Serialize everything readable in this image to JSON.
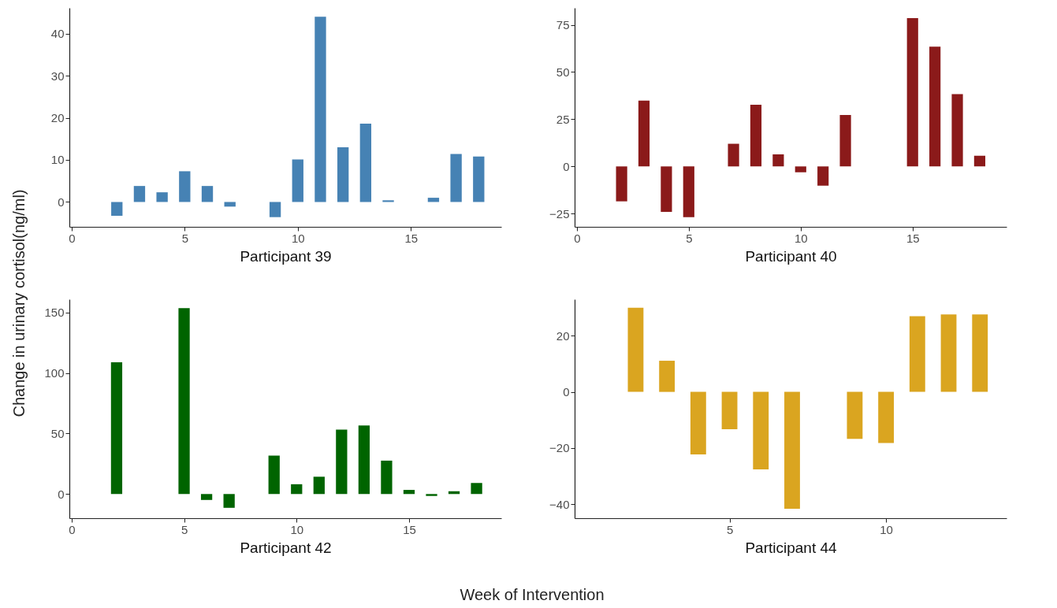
{
  "chart_data": [
    {
      "type": "bar",
      "xlabel": "Participant 39",
      "color": "#4682b4",
      "x": [
        2,
        3,
        4,
        5,
        6,
        7,
        9,
        10,
        11,
        12,
        13,
        14,
        16,
        17,
        18
      ],
      "values": [
        -3.3,
        3.8,
        2.3,
        7.3,
        3.8,
        -1.1,
        -3.6,
        10.1,
        44.0,
        13.0,
        18.6,
        0.4,
        1.0,
        11.4,
        10.8
      ],
      "xlim": [
        -0.1,
        19
      ],
      "xticks": [
        0,
        5,
        10,
        15
      ],
      "ylim": [
        -5.9,
        46.1
      ],
      "yticks": [
        0,
        10,
        20,
        30,
        40
      ],
      "annotations": [
        "Change in urinary cortisol(ng/ml)",
        "Week of Intervention"
      ]
    },
    {
      "type": "bar",
      "xlabel": "Participant 40",
      "color": "#8b1a1a",
      "x": [
        2,
        3,
        4,
        5,
        7,
        8,
        9,
        10,
        11,
        12,
        15,
        16,
        17,
        18
      ],
      "values": [
        -18.5,
        34.9,
        -24.1,
        -26.9,
        12.0,
        32.7,
        6.4,
        -3.1,
        -10.2,
        27.2,
        78.6,
        63.4,
        38.3,
        5.7
      ],
      "xlim": [
        -0.1,
        19.2
      ],
      "xticks": [
        0,
        5,
        10,
        15
      ],
      "ylim": [
        -32,
        84
      ],
      "yticks": [
        -25,
        0,
        25,
        50,
        75
      ]
    },
    {
      "type": "bar",
      "xlabel": "Participant 42",
      "color": "#006400",
      "x": [
        2,
        5,
        6,
        7,
        9,
        10,
        11,
        12,
        13,
        14,
        15,
        16,
        17,
        18
      ],
      "values": [
        108.9,
        153.6,
        -4.9,
        -11.4,
        31.7,
        8.1,
        14.3,
        53.3,
        56.7,
        27.6,
        3.4,
        -1.6,
        2.3,
        9.1
      ],
      "xlim": [
        -0.1,
        19.1
      ],
      "xticks": [
        0,
        5,
        10,
        15
      ],
      "ylim": [
        -20,
        161
      ],
      "yticks": [
        0,
        50,
        100,
        150
      ]
    },
    {
      "type": "bar",
      "xlabel": "Participant 44",
      "color": "#daa520",
      "x": [
        2,
        3,
        4,
        5,
        6,
        7,
        9,
        10,
        11,
        12,
        13
      ],
      "values": [
        30.0,
        11.1,
        -22.3,
        -13.3,
        -27.6,
        -41.6,
        -16.7,
        -18.2,
        27.0,
        27.6,
        27.6
      ],
      "xlim": [
        0.05,
        13.85
      ],
      "xticks": [
        5,
        10
      ],
      "ylim": [
        -45,
        33
      ],
      "yticks": [
        -40,
        -20,
        0,
        20
      ]
    }
  ]
}
